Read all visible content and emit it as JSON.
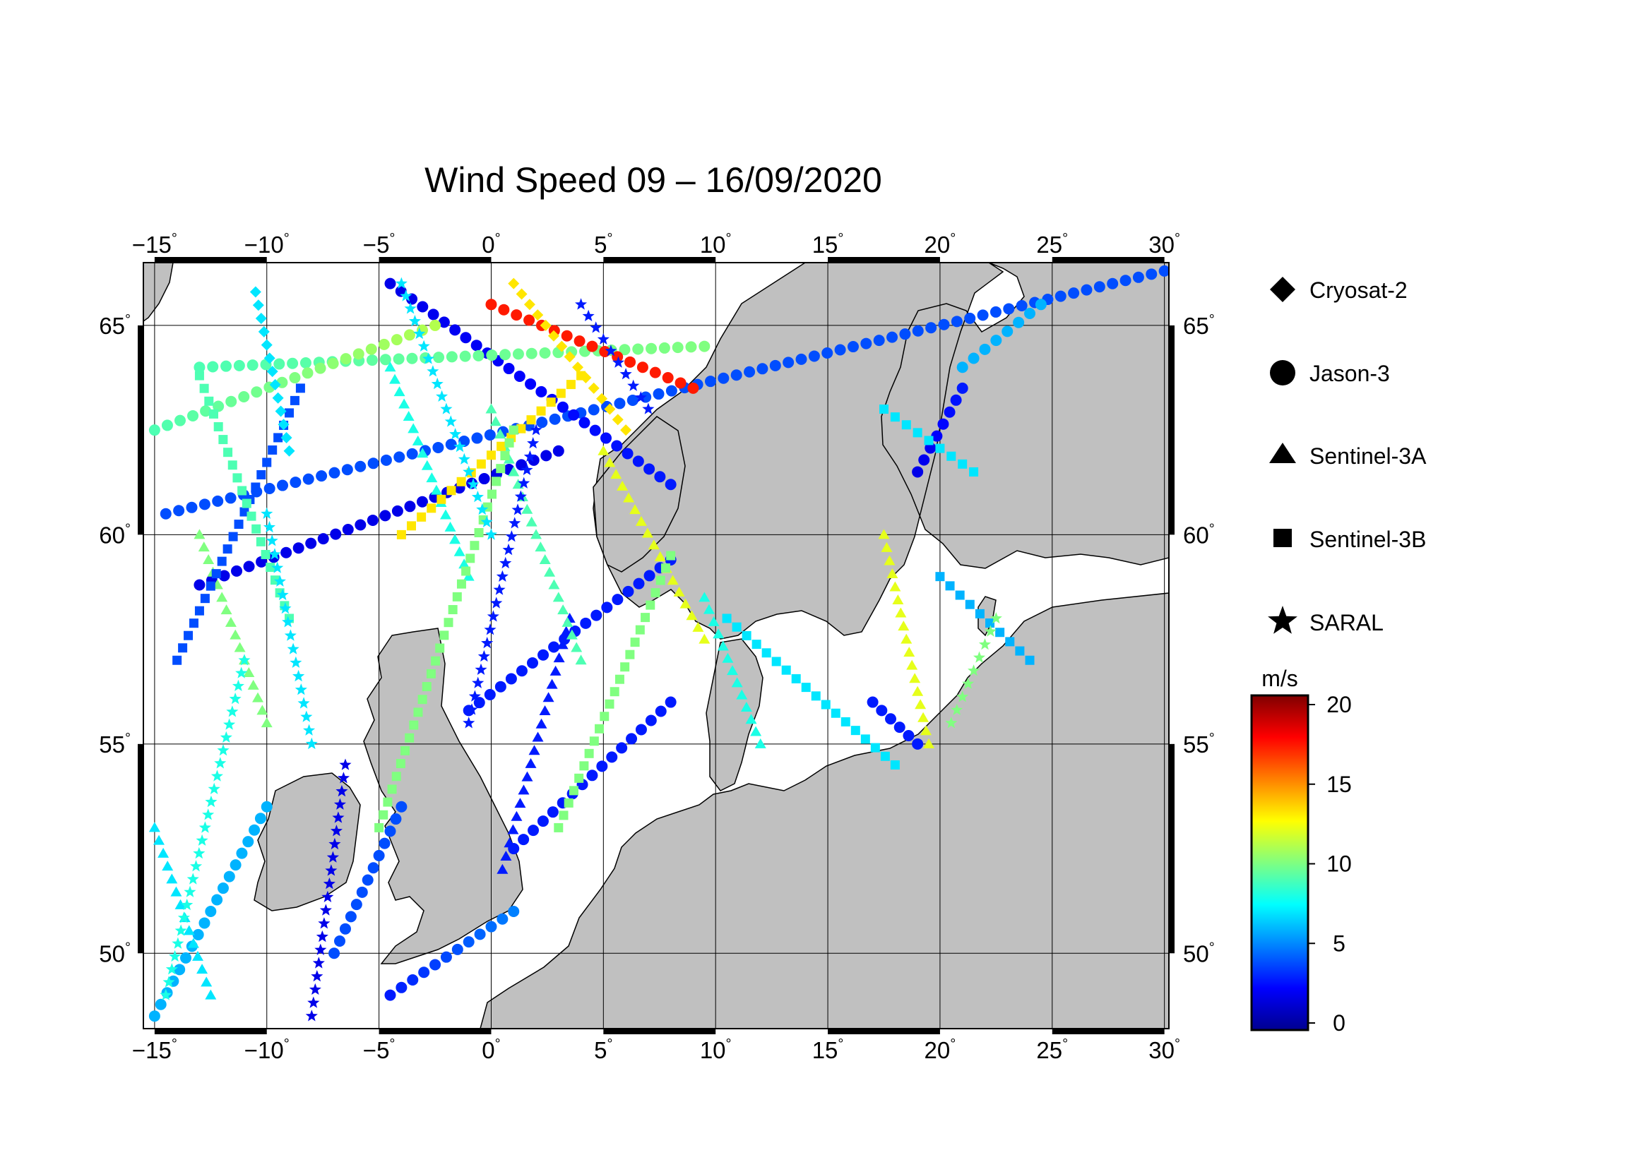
{
  "map": {
    "title": "Wind Speed 09 – 16/09/2020",
    "lon_ticks": [
      {
        "value": -15,
        "label": "−15"
      },
      {
        "value": -10,
        "label": "−10"
      },
      {
        "value": -5,
        "label": "−5"
      },
      {
        "value": 0,
        "label": "0"
      },
      {
        "value": 5,
        "label": "5"
      },
      {
        "value": 10,
        "label": "10"
      },
      {
        "value": 15,
        "label": "15"
      },
      {
        "value": 20,
        "label": "20"
      },
      {
        "value": 25,
        "label": "25"
      },
      {
        "value": 30,
        "label": "30"
      }
    ],
    "lat_ticks": [
      {
        "value": 65,
        "label": "65"
      },
      {
        "value": 60,
        "label": "60"
      },
      {
        "value": 55,
        "label": "55"
      },
      {
        "value": 50,
        "label": "50"
      }
    ],
    "degree_symbol": "°",
    "lon_range": [
      -15.5,
      30.2
    ],
    "lat_range": [
      48.2,
      66.5
    ],
    "land_color": "#c0c0c0",
    "ocean_color": "#ffffff",
    "grid": true
  },
  "legend": {
    "entries": [
      {
        "label": "Cryosat-2",
        "symbol": "diamond"
      },
      {
        "label": "Jason-3",
        "symbol": "circle"
      },
      {
        "label": "Sentinel-3A",
        "symbol": "triangle"
      },
      {
        "label": "Sentinel-3B",
        "symbol": "square"
      },
      {
        "label": "SARAL",
        "symbol": "star"
      }
    ]
  },
  "colorbar": {
    "unit": "m/s",
    "range": [
      0,
      20
    ],
    "ticks": [
      {
        "value": 20,
        "label": "20"
      },
      {
        "value": 15,
        "label": "15"
      },
      {
        "value": 10,
        "label": "10"
      },
      {
        "value": 5,
        "label": "5"
      },
      {
        "value": 0,
        "label": "0"
      }
    ],
    "colormap": [
      "#00008f",
      "#0000ff",
      "#0080ff",
      "#00ffff",
      "#80ff80",
      "#ffff00",
      "#ff8000",
      "#ff0000",
      "#800000"
    ]
  },
  "chart_data": {
    "type": "scatter",
    "title": "Wind Speed 09 – 16/09/2020",
    "x_range": [
      -15.5,
      30.2
    ],
    "y_range": [
      48.2,
      66.5
    ],
    "color_range": [
      0,
      20
    ],
    "color_unit": "m/s",
    "series": [
      {
        "name": "Jason-3",
        "symbol": "circle",
        "tracks": [
          {
            "lon": [
              -14.5,
              30.0
            ],
            "lat": [
              60.5,
              66.3
            ],
            "ws": [
              4,
              4
            ]
          },
          {
            "lon": [
              -4.5,
              8.0
            ],
            "lat": [
              66.0,
              61.2
            ],
            "ws": [
              2,
              3
            ]
          },
          {
            "lon": [
              -1.0,
              8.0
            ],
            "lat": [
              55.8,
              59.4
            ],
            "ws": [
              3,
              3
            ]
          },
          {
            "lon": [
              1.0,
              8.0
            ],
            "lat": [
              52.5,
              56.0
            ],
            "ws": [
              3,
              3
            ]
          },
          {
            "lon": [
              -4.5,
              1.0
            ],
            "lat": [
              49.0,
              51.0
            ],
            "ws": [
              3,
              5
            ]
          },
          {
            "lon": [
              -15.0,
              -10.0
            ],
            "lat": [
              48.5,
              53.5
            ],
            "ws": [
              6,
              6
            ]
          },
          {
            "lon": [
              -13.0,
              9.5
            ],
            "lat": [
              64.0,
              64.5
            ],
            "ws": [
              9,
              10
            ]
          },
          {
            "lon": [
              -15.0,
              -2.5
            ],
            "lat": [
              62.5,
              65.0
            ],
            "ws": [
              9,
              11
            ]
          },
          {
            "lon": [
              -13.0,
              3.0
            ],
            "lat": [
              58.8,
              62.0
            ],
            "ws": [
              2,
              2
            ]
          },
          {
            "lon": [
              -7.0,
              -4.0
            ],
            "lat": [
              50.0,
              53.5
            ],
            "ws": [
              4,
              4
            ]
          },
          {
            "lon": [
              0.0,
              9.0
            ],
            "lat": [
              65.5,
              63.5
            ],
            "ws": [
              17,
              17
            ]
          },
          {
            "lon": [
              17.0,
              19.0
            ],
            "lat": [
              56.0,
              55.0
            ],
            "ws": [
              3,
              3
            ]
          },
          {
            "lon": [
              19.0,
              21.0
            ],
            "lat": [
              61.5,
              63.5
            ],
            "ws": [
              2,
              3
            ]
          },
          {
            "lon": [
              21.0,
              24.5
            ],
            "lat": [
              64.0,
              65.5
            ],
            "ws": [
              6,
              6
            ]
          }
        ]
      },
      {
        "name": "Sentinel-3A",
        "symbol": "triangle",
        "tracks": [
          {
            "lon": [
              -15.0,
              -12.5
            ],
            "lat": [
              53.0,
              49.0
            ],
            "ws": [
              7,
              7
            ]
          },
          {
            "lon": [
              -13.0,
              -10.0
            ],
            "lat": [
              60.0,
              55.5
            ],
            "ws": [
              10,
              10
            ]
          },
          {
            "lon": [
              -4.5,
              -1.0
            ],
            "lat": [
              64.0,
              59.0
            ],
            "ws": [
              8,
              8
            ]
          },
          {
            "lon": [
              0.5,
              3.5
            ],
            "lat": [
              52.0,
              58.0
            ],
            "ws": [
              3,
              3
            ]
          },
          {
            "lon": [
              0.0,
              4.0
            ],
            "lat": [
              63.0,
              57.0
            ],
            "ws": [
              9,
              9
            ]
          },
          {
            "lon": [
              5.0,
              9.5
            ],
            "lat": [
              62.0,
              57.5
            ],
            "ws": [
              12,
              12
            ]
          },
          {
            "lon": [
              17.5,
              19.5
            ],
            "lat": [
              60.0,
              55.0
            ],
            "ws": [
              12,
              12
            ]
          },
          {
            "lon": [
              9.5,
              12.0
            ],
            "lat": [
              58.5,
              55.0
            ],
            "ws": [
              8,
              8
            ]
          }
        ]
      },
      {
        "name": "Sentinel-3B",
        "symbol": "square",
        "tracks": [
          {
            "lon": [
              -14.0,
              -8.5
            ],
            "lat": [
              57.0,
              63.5
            ],
            "ws": [
              4,
              4
            ]
          },
          {
            "lon": [
              -13.0,
              -9.0
            ],
            "lat": [
              63.8,
              58.0
            ],
            "ws": [
              9,
              9
            ]
          },
          {
            "lon": [
              -4.0,
              4.0
            ],
            "lat": [
              60.0,
              63.8
            ],
            "ws": [
              13,
              13
            ]
          },
          {
            "lon": [
              -5.0,
              1.0
            ],
            "lat": [
              53.0,
              62.5
            ],
            "ws": [
              10,
              10
            ]
          },
          {
            "lon": [
              3.0,
              8.0
            ],
            "lat": [
              53.0,
              59.5
            ],
            "ws": [
              10,
              10
            ]
          },
          {
            "lon": [
              10.5,
              18.0
            ],
            "lat": [
              58.0,
              54.5
            ],
            "ws": [
              7,
              7
            ]
          },
          {
            "lon": [
              20.0,
              24.0
            ],
            "lat": [
              59.0,
              57.0
            ],
            "ws": [
              6,
              6
            ]
          },
          {
            "lon": [
              17.5,
              21.5
            ],
            "lat": [
              63.0,
              61.5
            ],
            "ws": [
              7,
              7
            ]
          }
        ]
      },
      {
        "name": "SARAL",
        "symbol": "star",
        "tracks": [
          {
            "lon": [
              -8.0,
              -6.5
            ],
            "lat": [
              48.5,
              54.5
            ],
            "ws": [
              2,
              2
            ]
          },
          {
            "lon": [
              -10.0,
              -8.0
            ],
            "lat": [
              60.5,
              55.0
            ],
            "ws": [
              7,
              7
            ]
          },
          {
            "lon": [
              -1.0,
              2.0
            ],
            "lat": [
              55.5,
              62.5
            ],
            "ws": [
              3,
              3
            ]
          },
          {
            "lon": [
              -4.0,
              0.0
            ],
            "lat": [
              66.0,
              60.0
            ],
            "ws": [
              7,
              7
            ]
          },
          {
            "lon": [
              4.0,
              7.0
            ],
            "lat": [
              65.5,
              63.0
            ],
            "ws": [
              3,
              3
            ]
          },
          {
            "lon": [
              -14.5,
              -11.0
            ],
            "lat": [
              49.0,
              57.0
            ],
            "ws": [
              8,
              8
            ]
          },
          {
            "lon": [
              20.5,
              22.5
            ],
            "lat": [
              55.5,
              58.0
            ],
            "ws": [
              10,
              10
            ]
          }
        ]
      },
      {
        "name": "Cryosat-2",
        "symbol": "diamond",
        "tracks": [
          {
            "lon": [
              1.0,
              6.0
            ],
            "lat": [
              66.0,
              62.5
            ],
            "ws": [
              13,
              13
            ]
          },
          {
            "lon": [
              -10.5,
              -9.0
            ],
            "lat": [
              65.8,
              62.0
            ],
            "ws": [
              7,
              7
            ]
          }
        ]
      }
    ]
  }
}
